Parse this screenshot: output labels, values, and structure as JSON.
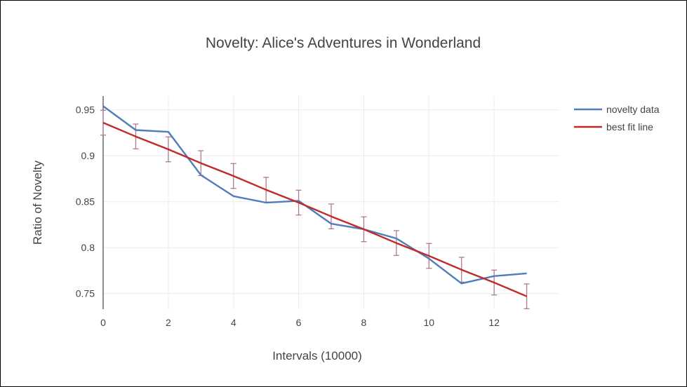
{
  "chart_data": {
    "type": "line",
    "title": "Novelty: Alice's Adventures in Wonderland",
    "xlabel": "Intervals (10000)",
    "ylabel": "Ratio of Novelty",
    "xlim": [
      0,
      14
    ],
    "ylim": [
      0.733,
      0.965
    ],
    "xticks": [
      0,
      2,
      4,
      6,
      8,
      10,
      12
    ],
    "yticks": [
      0.75,
      0.8,
      0.85,
      0.9,
      0.95
    ],
    "ytick_labels": [
      "0.75",
      "0.8",
      "0.85",
      "0.9",
      "0.95"
    ],
    "grid": true,
    "legend_position": "top-right",
    "series": [
      {
        "name": "novelty data",
        "color": "#4f7cba",
        "x": [
          0,
          1,
          2,
          3,
          4,
          5,
          6,
          7,
          8,
          9,
          10,
          11,
          12,
          13
        ],
        "y": [
          0.954,
          0.928,
          0.926,
          0.879,
          0.856,
          0.849,
          0.851,
          0.826,
          0.82,
          0.81,
          0.788,
          0.761,
          0.769,
          0.772
        ]
      },
      {
        "name": "best fit line",
        "color": "#c02a2a",
        "x": [
          0,
          1,
          2,
          3,
          4,
          5,
          6,
          7,
          8,
          9,
          10,
          11,
          12,
          13
        ],
        "y": [
          0.936,
          0.921,
          0.907,
          0.892,
          0.878,
          0.863,
          0.849,
          0.834,
          0.82,
          0.805,
          0.791,
          0.776,
          0.762,
          0.747
        ],
        "error": 0.0135,
        "error_color": "#b07a90"
      }
    ]
  }
}
